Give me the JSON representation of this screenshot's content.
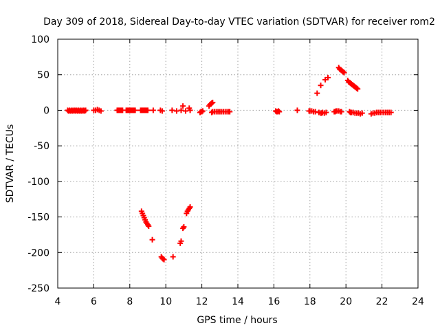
{
  "chart_data": {
    "type": "scatter",
    "title": "Day 309 of 2018, Sidereal Day-to-day VTEC variation (SDTVAR) for receiver rom2",
    "xlabel": "GPS time / hours",
    "ylabel": "SDTVAR / TECUs",
    "xlim": [
      4,
      24
    ],
    "ylim": [
      -250,
      100
    ],
    "xticks": [
      4,
      6,
      8,
      10,
      12,
      14,
      16,
      18,
      20,
      22,
      24
    ],
    "yticks": [
      -250,
      -200,
      -150,
      -100,
      -50,
      0,
      50,
      100
    ],
    "grid": true,
    "marker": "plus",
    "color": "#ff0000",
    "series": [
      {
        "name": "SDTVAR",
        "x": [
          4.55,
          4.6,
          4.65,
          4.7,
          4.75,
          4.8,
          4.85,
          4.9,
          4.95,
          5.0,
          5.05,
          5.1,
          5.15,
          5.2,
          5.25,
          5.3,
          5.35,
          5.4,
          5.45,
          5.5,
          5.55,
          6.0,
          6.1,
          6.2,
          6.3,
          6.4,
          7.3,
          7.35,
          7.4,
          7.45,
          7.5,
          7.55,
          7.6,
          7.8,
          7.85,
          7.9,
          7.95,
          8.0,
          8.05,
          8.1,
          8.15,
          8.2,
          8.25,
          8.3,
          8.6,
          8.65,
          8.7,
          8.75,
          8.8,
          8.85,
          8.9,
          8.95,
          9.0,
          9.3,
          9.7,
          9.8,
          10.35,
          10.6,
          10.85,
          10.95,
          11.1,
          11.3,
          11.35,
          8.65,
          8.7,
          8.75,
          8.8,
          8.85,
          8.9,
          8.95,
          9.0,
          9.05,
          9.25,
          9.75,
          9.8,
          9.85,
          9.9,
          10.4,
          10.8,
          10.85,
          10.95,
          11.0,
          11.15,
          11.2,
          11.25,
          11.3,
          11.35,
          11.9,
          11.95,
          12.0,
          12.05,
          12.4,
          12.45,
          12.5,
          12.55,
          12.6,
          12.55,
          12.6,
          12.7,
          12.8,
          12.9,
          13.0,
          13.1,
          13.2,
          13.3,
          13.4,
          13.5,
          13.55,
          16.1,
          16.15,
          16.2,
          16.25,
          16.3,
          17.3,
          17.95,
          18.0,
          18.1,
          18.2,
          18.3,
          18.5,
          18.6,
          18.65,
          18.7,
          18.8,
          18.9,
          19.35,
          19.4,
          19.45,
          19.5,
          19.6,
          19.7,
          19.75,
          18.4,
          18.6,
          18.85,
          19.0,
          19.6,
          19.65,
          19.7,
          19.75,
          19.8,
          19.85,
          19.9,
          20.1,
          20.15,
          20.2,
          20.25,
          20.3,
          20.35,
          20.4,
          20.45,
          20.5,
          20.55,
          20.6,
          20.65,
          20.2,
          20.25,
          20.3,
          20.4,
          20.5,
          20.6,
          20.7,
          20.8,
          20.9,
          21.4,
          21.5,
          21.6,
          21.7,
          21.8,
          21.9,
          22.0,
          22.1,
          22.2,
          22.3,
          22.4,
          22.5
        ],
        "y": [
          0,
          -1,
          0,
          -1,
          0,
          -1,
          0,
          -1,
          0,
          -1,
          0,
          -1,
          0,
          -1,
          0,
          -1,
          0,
          -1,
          0,
          -1,
          0,
          0,
          0,
          1,
          0,
          -1,
          0,
          0,
          0,
          0,
          0,
          0,
          0,
          0,
          0,
          0,
          0,
          0,
          0,
          0,
          0,
          0,
          0,
          0,
          0,
          0,
          0,
          0,
          0,
          0,
          0,
          0,
          0,
          0,
          0,
          -1,
          0,
          -1,
          0,
          6,
          -1,
          3,
          0,
          -142,
          -145,
          -148,
          -151,
          -154,
          -157,
          -159,
          -161,
          -163,
          -182,
          -206,
          -208,
          -209,
          -210,
          -206,
          -187,
          -184,
          -166,
          -164,
          -145,
          -142,
          -140,
          -138,
          -136,
          -3,
          -2,
          -2,
          -1,
          6,
          8,
          9,
          10,
          11,
          -3,
          -2,
          -2,
          -2,
          -2,
          -2,
          -2,
          -2,
          -2,
          -2,
          -2,
          -2,
          -1,
          -2,
          -2,
          -1,
          -2,
          0,
          -1,
          -1,
          -1,
          -2,
          -2,
          -3,
          -4,
          -4,
          -3,
          -4,
          -3,
          -2,
          -2,
          -1,
          -1,
          -1,
          -2,
          -2,
          24,
          35,
          43,
          46,
          60,
          58,
          57,
          56,
          55,
          54,
          53,
          42,
          40,
          39,
          38,
          37,
          36,
          35,
          34,
          33,
          32,
          31,
          30,
          -2,
          -3,
          -3,
          -3,
          -4,
          -4,
          -4,
          -5,
          -4,
          -5,
          -4,
          -4,
          -3,
          -3,
          -3,
          -3,
          -3,
          -3,
          -3,
          -3,
          -3
        ]
      }
    ]
  }
}
